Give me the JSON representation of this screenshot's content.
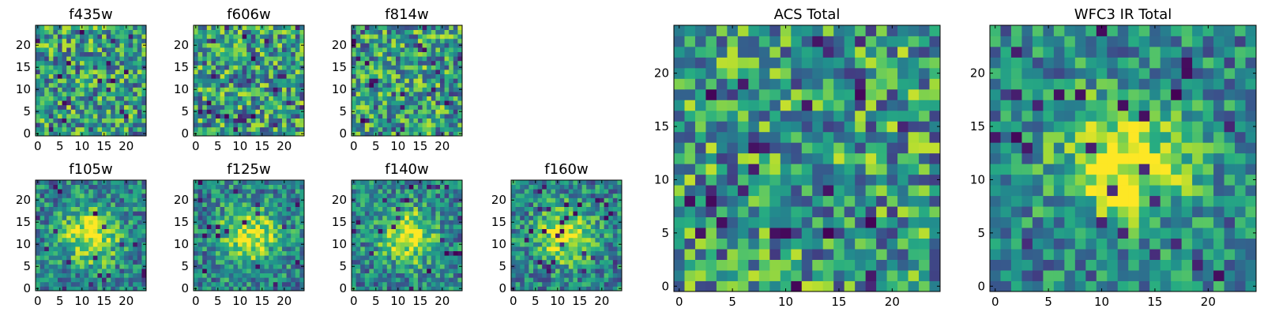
{
  "chart_data": [
    {
      "type": "heatmap",
      "title": "f435w",
      "colormap": "viridis",
      "grid_size": 25,
      "x_ticks": [
        "0",
        "5",
        "10",
        "15",
        "20"
      ],
      "y_ticks": [
        "0",
        "5",
        "10",
        "15",
        "20"
      ],
      "xlim": [
        0,
        25
      ],
      "ylim": [
        0,
        25
      ],
      "pattern": "noise"
    },
    {
      "type": "heatmap",
      "title": "f606w",
      "colormap": "viridis",
      "grid_size": 25,
      "x_ticks": [
        "0",
        "5",
        "10",
        "15",
        "20"
      ],
      "y_ticks": [
        "0",
        "5",
        "10",
        "15",
        "20"
      ],
      "xlim": [
        0,
        25
      ],
      "ylim": [
        0,
        25
      ],
      "pattern": "noise"
    },
    {
      "type": "heatmap",
      "title": "f814w",
      "colormap": "viridis",
      "grid_size": 25,
      "x_ticks": [
        "0",
        "5",
        "10",
        "15",
        "20"
      ],
      "y_ticks": [
        "0",
        "5",
        "10",
        "15",
        "20"
      ],
      "xlim": [
        0,
        25
      ],
      "ylim": [
        0,
        25
      ],
      "pattern": "noise"
    },
    {
      "type": "heatmap",
      "title": "f105w",
      "colormap": "viridis",
      "grid_size": 25,
      "x_ticks": [
        "0",
        "5",
        "10",
        "15",
        "20"
      ],
      "y_ticks": [
        "0",
        "5",
        "10",
        "15",
        "20"
      ],
      "xlim": [
        0,
        25
      ],
      "ylim": [
        0,
        25
      ],
      "pattern": "central_source"
    },
    {
      "type": "heatmap",
      "title": "f125w",
      "colormap": "viridis",
      "grid_size": 25,
      "x_ticks": [
        "0",
        "5",
        "10",
        "15",
        "20"
      ],
      "y_ticks": [
        "0",
        "5",
        "10",
        "15",
        "20"
      ],
      "xlim": [
        0,
        25
      ],
      "ylim": [
        0,
        25
      ],
      "pattern": "central_source"
    },
    {
      "type": "heatmap",
      "title": "f140w",
      "colormap": "viridis",
      "grid_size": 25,
      "x_ticks": [
        "0",
        "5",
        "10",
        "15",
        "20"
      ],
      "y_ticks": [
        "0",
        "5",
        "10",
        "15",
        "20"
      ],
      "xlim": [
        0,
        25
      ],
      "ylim": [
        0,
        25
      ],
      "pattern": "central_source"
    },
    {
      "type": "heatmap",
      "title": "f160w",
      "colormap": "viridis",
      "grid_size": 25,
      "x_ticks": [
        "0",
        "5",
        "10",
        "15",
        "20"
      ],
      "y_ticks": [
        "0",
        "5",
        "10",
        "15",
        "20"
      ],
      "xlim": [
        0,
        25
      ],
      "ylim": [
        0,
        25
      ],
      "pattern": "central_source"
    },
    {
      "type": "heatmap",
      "title": "ACS Total",
      "colormap": "viridis",
      "grid_size": 25,
      "x_ticks": [
        "0",
        "5",
        "10",
        "15",
        "20"
      ],
      "y_ticks": [
        "0",
        "5",
        "10",
        "15",
        "20"
      ],
      "xlim": [
        0,
        25
      ],
      "ylim": [
        0,
        25
      ],
      "pattern": "noise"
    },
    {
      "type": "heatmap",
      "title": "WFC3 IR Total",
      "colormap": "viridis",
      "grid_size": 25,
      "x_ticks": [
        "0",
        "5",
        "10",
        "15",
        "20"
      ],
      "y_ticks": [
        "0",
        "5",
        "10",
        "15",
        "20"
      ],
      "xlim": [
        0,
        25
      ],
      "ylim": [
        0,
        25
      ],
      "pattern": "central_source"
    }
  ]
}
